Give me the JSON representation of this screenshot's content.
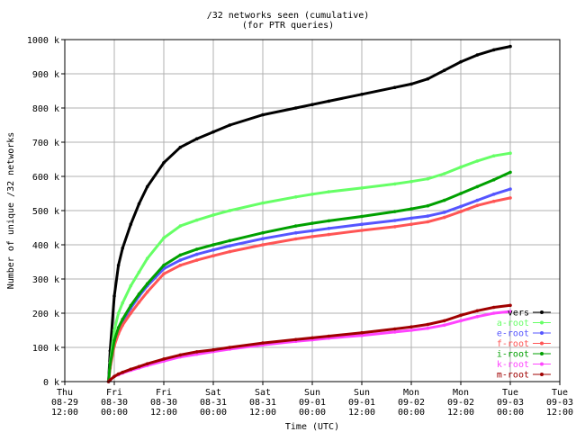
{
  "chart_data": {
    "type": "line",
    "title": "/32 networks seen (cumulative)",
    "subtitle": "(for PTR queries)",
    "xlabel": "Time (UTC)",
    "ylabel": "Number of unique /32 networks",
    "xlim": [
      0,
      120
    ],
    "ylim": [
      0,
      1000
    ],
    "grid": true,
    "legend_position": "bottom-right",
    "x_ticks": [
      {
        "x": 0,
        "lines": [
          "Thu",
          "08-29",
          "12:00"
        ]
      },
      {
        "x": 12,
        "lines": [
          "Fri",
          "08-30",
          "00:00"
        ]
      },
      {
        "x": 24,
        "lines": [
          "Fri",
          "08-30",
          "12:00"
        ]
      },
      {
        "x": 36,
        "lines": [
          "Sat",
          "08-31",
          "00:00"
        ]
      },
      {
        "x": 48,
        "lines": [
          "Sat",
          "08-31",
          "12:00"
        ]
      },
      {
        "x": 60,
        "lines": [
          "Sun",
          "09-01",
          "00:00"
        ]
      },
      {
        "x": 72,
        "lines": [
          "Sun",
          "09-01",
          "12:00"
        ]
      },
      {
        "x": 84,
        "lines": [
          "Mon",
          "09-02",
          "00:00"
        ]
      },
      {
        "x": 96,
        "lines": [
          "Mon",
          "09-02",
          "12:00"
        ]
      },
      {
        "x": 108,
        "lines": [
          "Tue",
          "09-03",
          "00:00"
        ]
      },
      {
        "x": 120,
        "lines": [
          "Tue",
          "09-03",
          "12:00"
        ]
      }
    ],
    "y_ticks": [
      {
        "y": 0,
        "label": "0 k"
      },
      {
        "y": 100,
        "label": "100 k"
      },
      {
        "y": 200,
        "label": "200 k"
      },
      {
        "y": 300,
        "label": "300 k"
      },
      {
        "y": 400,
        "label": "400 k"
      },
      {
        "y": 500,
        "label": "500 k"
      },
      {
        "y": 600,
        "label": "600 k"
      },
      {
        "y": 700,
        "label": "700 k"
      },
      {
        "y": 800,
        "label": "800 k"
      },
      {
        "y": 900,
        "label": "900 k"
      },
      {
        "y": 1000,
        "label": "1000 k"
      }
    ],
    "x": [
      10.6,
      11,
      12,
      13,
      14,
      16,
      18,
      20,
      24,
      28,
      32,
      36,
      40,
      48,
      56,
      60,
      64,
      72,
      80,
      84,
      88,
      92,
      96,
      100,
      104,
      108
    ],
    "series": [
      {
        "name": "all servers",
        "legend_label": "vers",
        "color": "#000000",
        "values": [
          0,
          90,
          250,
          340,
          390,
          460,
          520,
          570,
          640,
          685,
          710,
          730,
          750,
          780,
          800,
          810,
          820,
          840,
          860,
          870,
          885,
          910,
          935,
          955,
          970,
          980
        ]
      },
      {
        "name": "a-root",
        "color": "#66ff66",
        "values": [
          0,
          55,
          150,
          200,
          230,
          280,
          320,
          360,
          420,
          455,
          472,
          487,
          500,
          522,
          540,
          548,
          555,
          566,
          578,
          585,
          593,
          608,
          627,
          645,
          660,
          668
        ]
      },
      {
        "name": "e-root",
        "color": "#5555ff",
        "values": [
          0,
          45,
          110,
          150,
          175,
          215,
          250,
          280,
          330,
          355,
          372,
          385,
          397,
          418,
          435,
          441,
          448,
          460,
          471,
          478,
          484,
          495,
          512,
          530,
          548,
          563
        ]
      },
      {
        "name": "f-root",
        "color": "#ff5555",
        "values": [
          0,
          40,
          105,
          140,
          165,
          200,
          232,
          262,
          315,
          340,
          355,
          368,
          380,
          400,
          417,
          424,
          430,
          442,
          453,
          460,
          467,
          480,
          497,
          515,
          527,
          537
        ]
      },
      {
        "name": "i-root",
        "color": "#00a000",
        "values": [
          0,
          50,
          120,
          158,
          182,
          222,
          256,
          286,
          340,
          370,
          387,
          400,
          412,
          435,
          455,
          463,
          470,
          483,
          497,
          505,
          514,
          530,
          550,
          570,
          590,
          612
        ]
      },
      {
        "name": "k-root",
        "color": "#ff44ff",
        "values": [
          0,
          5,
          15,
          20,
          25,
          33,
          40,
          47,
          60,
          72,
          80,
          88,
          95,
          107,
          118,
          122,
          127,
          135,
          145,
          150,
          156,
          165,
          178,
          190,
          200,
          205
        ]
      },
      {
        "name": "m-root",
        "color": "#a00000",
        "values": [
          0,
          5,
          15,
          22,
          27,
          36,
          44,
          52,
          66,
          78,
          87,
          93,
          100,
          113,
          123,
          128,
          133,
          143,
          154,
          160,
          167,
          178,
          194,
          207,
          217,
          223
        ]
      }
    ]
  }
}
